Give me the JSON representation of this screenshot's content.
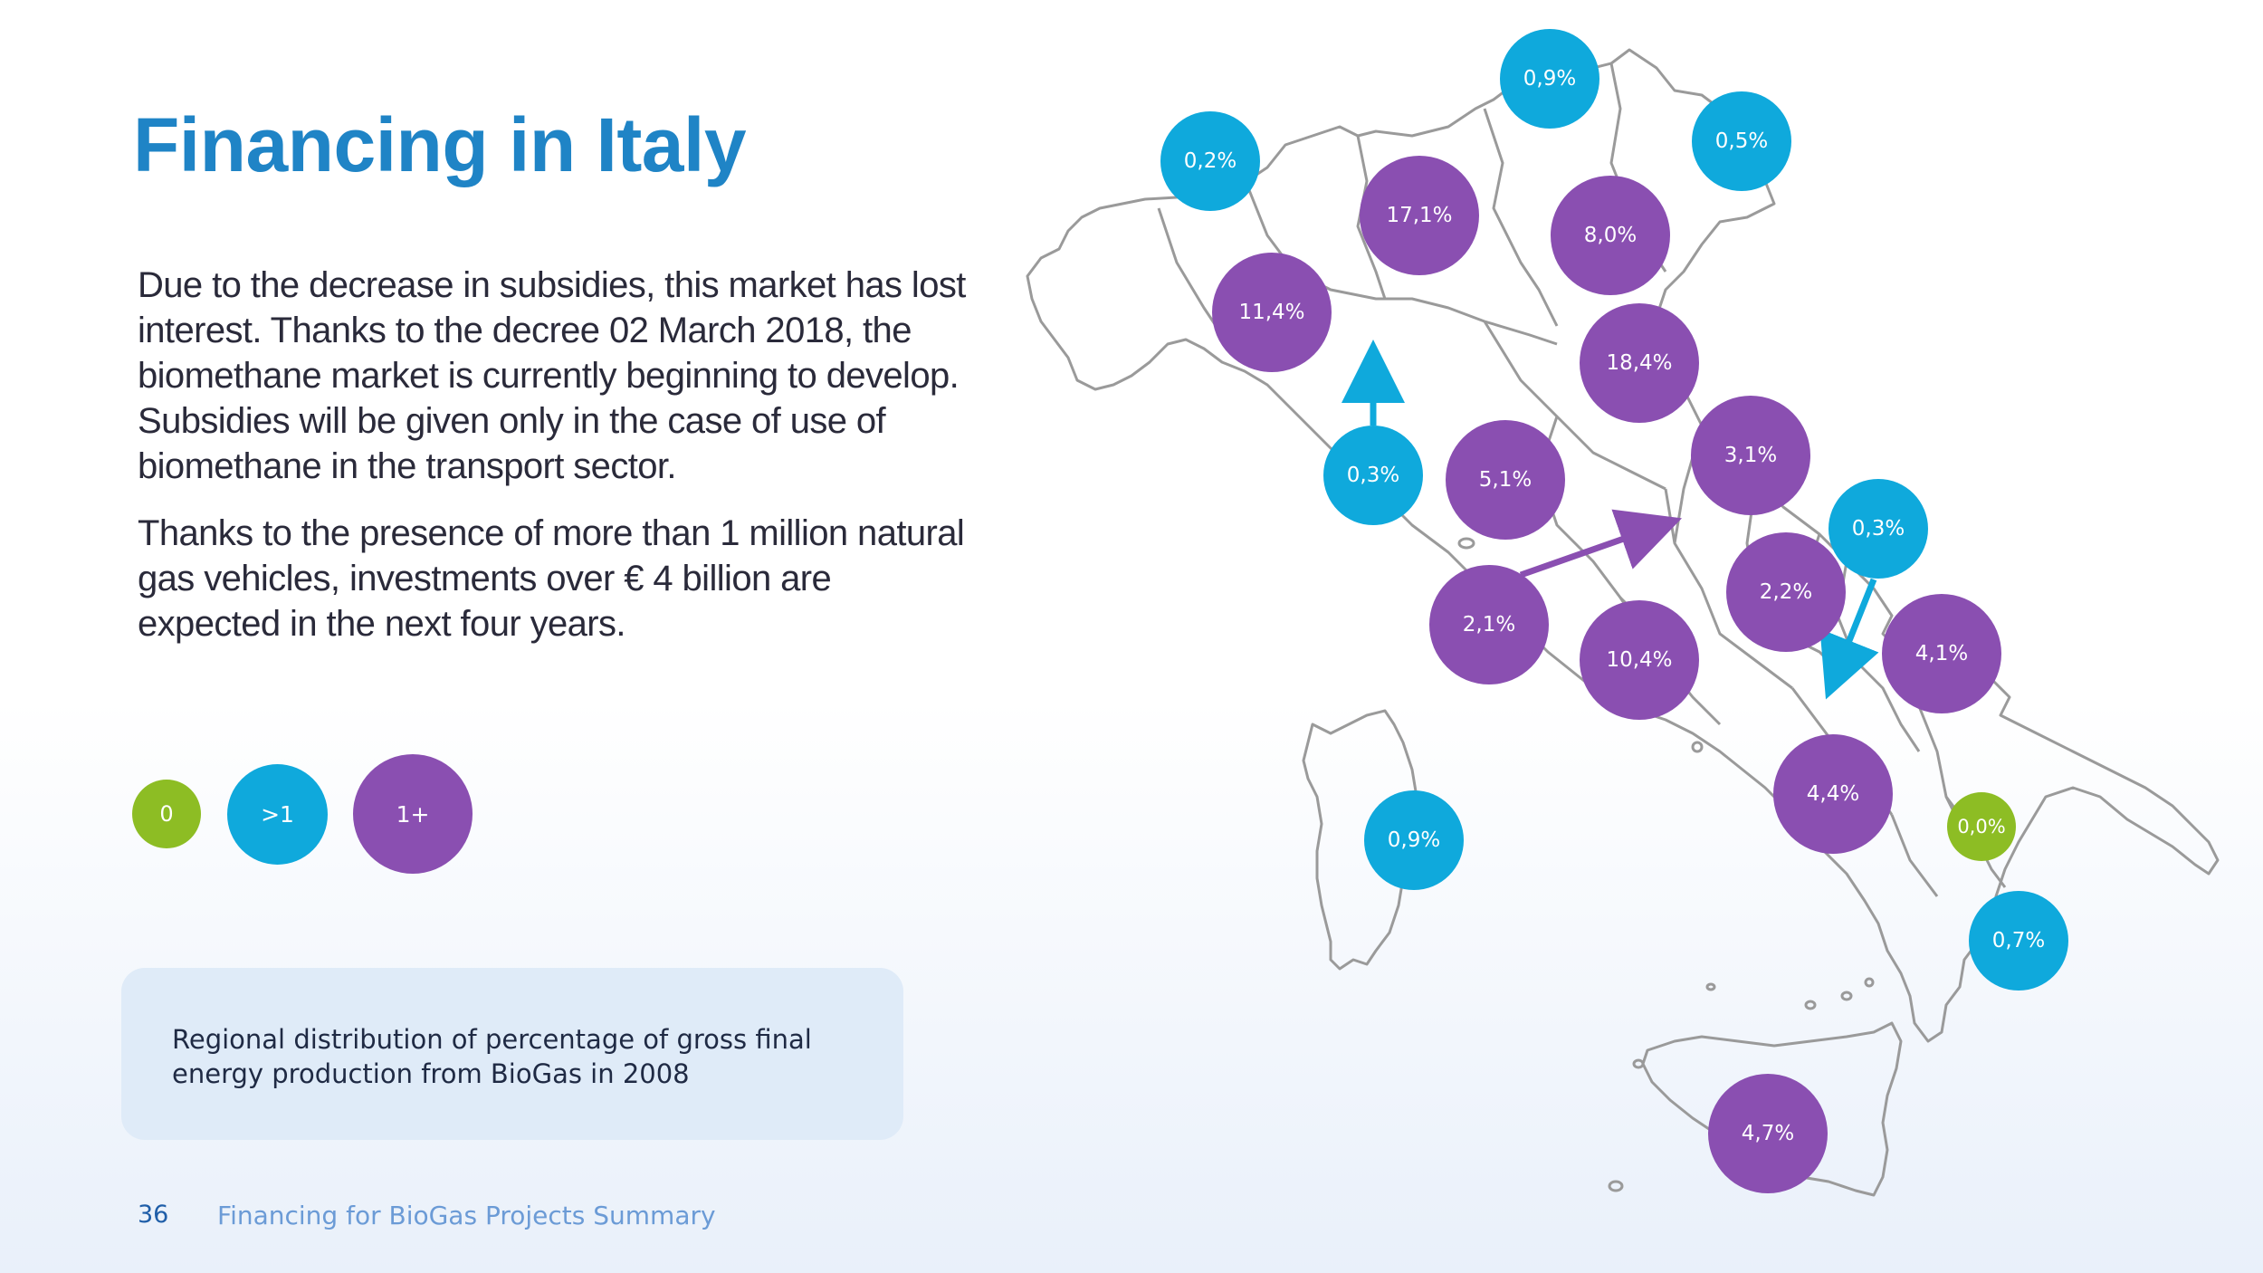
{
  "slide": {
    "title": "Financing in Italy",
    "paragraphs": [
      "Due to the decrease in subsidies, this market has lost interest. Thanks to the decree 02 March 2018, the biomethane market is currently beginning to develop. Subsidies will be given only in the case of use of biomethane in the transport sector.",
      "Thanks to the presence of more  than 1 million natural gas vehicles, investments over € 4 billion are expected in the next four years."
    ],
    "legend": [
      {
        "label": "0",
        "category": "zero",
        "color": "#8dbd24"
      },
      {
        "label": ">1",
        "category": "low",
        "color": "#0fa9dc"
      },
      {
        "label": "1+",
        "category": "high",
        "color": "#8a4fb1"
      }
    ],
    "caption": "Regional distribution of percentage of gross final energy production from BioGas in 2008",
    "footer": {
      "page_number": "36",
      "text": "Financing for BioGas Projects Summary"
    }
  },
  "colors": {
    "title": "#1f84c6",
    "zero": "#8dbd24",
    "low": "#0fa9dc",
    "high": "#8a4fb1",
    "map_outline": "#9a9a9a"
  },
  "map": {
    "regions": [
      {
        "label": "0,9%",
        "category": "low"
      },
      {
        "label": "0,2%",
        "category": "low"
      },
      {
        "label": "0,5%",
        "category": "low"
      },
      {
        "label": "17,1%",
        "category": "high"
      },
      {
        "label": "8,0%",
        "category": "high"
      },
      {
        "label": "11,4%",
        "category": "high"
      },
      {
        "label": "18,4%",
        "category": "high"
      },
      {
        "label": "0,3%",
        "category": "low"
      },
      {
        "label": "5,1%",
        "category": "high"
      },
      {
        "label": "3,1%",
        "category": "high"
      },
      {
        "label": "0,3%",
        "category": "low"
      },
      {
        "label": "2,2%",
        "category": "high"
      },
      {
        "label": "2,1%",
        "category": "high"
      },
      {
        "label": "10,4%",
        "category": "high"
      },
      {
        "label": "4,1%",
        "category": "high"
      },
      {
        "label": "4,4%",
        "category": "high"
      },
      {
        "label": "0,0%",
        "category": "zero"
      },
      {
        "label": "0,9%",
        "category": "low"
      },
      {
        "label": "0,7%",
        "category": "low"
      },
      {
        "label": "4,7%",
        "category": "high"
      }
    ]
  }
}
